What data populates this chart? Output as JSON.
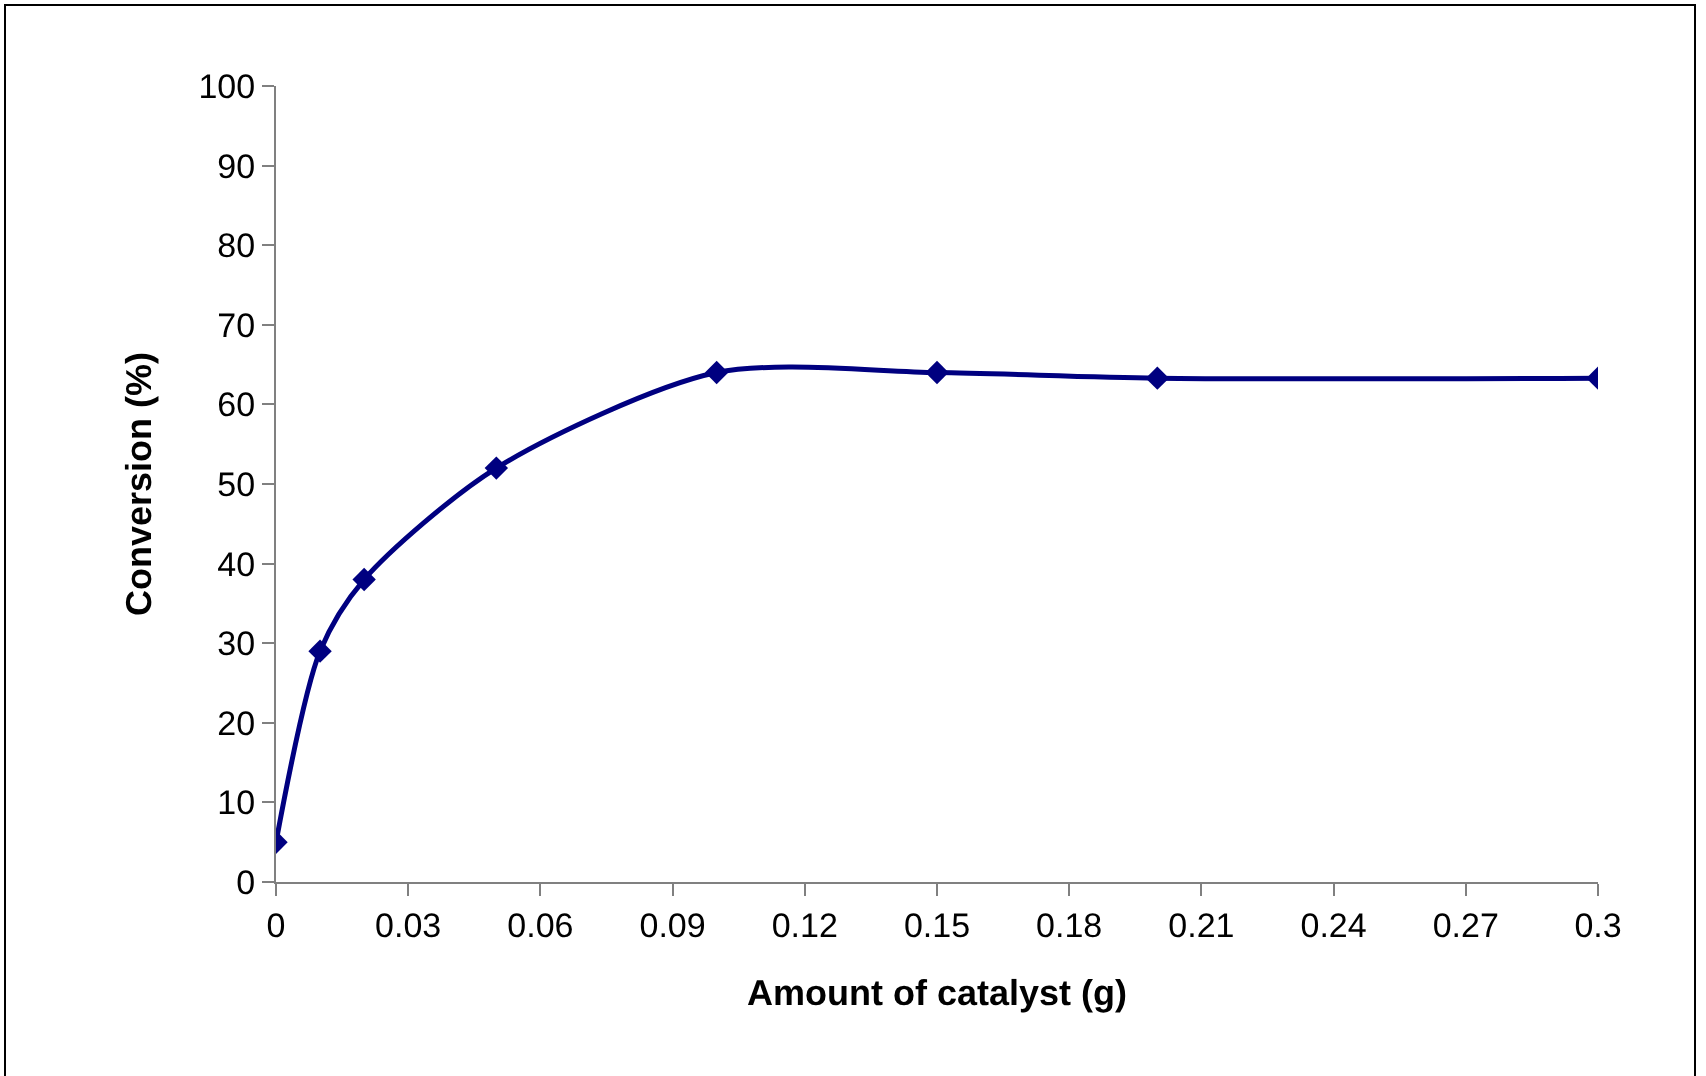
{
  "chart_data": {
    "type": "line",
    "xlabel": "Amount of catalyst (g)",
    "ylabel": "Conversion (%)",
    "x": [
      0,
      0.01,
      0.02,
      0.05,
      0.1,
      0.15,
      0.2,
      0.3
    ],
    "series": [
      {
        "color": "#000080",
        "values": [
          5,
          29,
          38,
          52,
          64,
          64,
          63.3,
          63.3
        ]
      }
    ],
    "xlim": [
      0,
      0.3
    ],
    "xticks": [
      0,
      0.03,
      0.06,
      0.09,
      0.12,
      0.15,
      0.18,
      0.21,
      0.24,
      0.27,
      0.3
    ],
    "ylim": [
      0,
      100
    ],
    "yticks": [
      0,
      10,
      20,
      30,
      40,
      50,
      60,
      70,
      80,
      90,
      100
    ],
    "grid": false,
    "marker": "diamond",
    "line_style": "solid"
  }
}
